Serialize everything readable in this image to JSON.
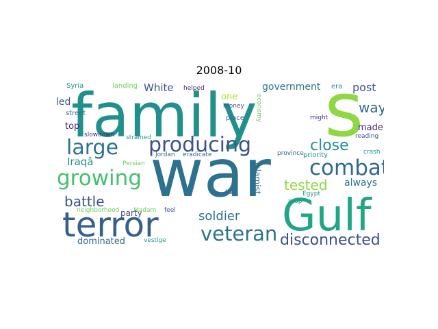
{
  "title": "2008-10",
  "words": [
    {
      "key": "family",
      "text": "family",
      "color": "#21908d"
    },
    {
      "key": "s",
      "text": "s",
      "color": "#8fd744"
    },
    {
      "key": "war",
      "text": "war",
      "color": "#2c728e"
    },
    {
      "key": "terror",
      "text": "terror",
      "color": "#355f8d"
    },
    {
      "key": "gulf",
      "text": "Gulf",
      "color": "#21a685"
    },
    {
      "key": "producing",
      "text": "producing",
      "color": "#3b528b"
    },
    {
      "key": "large",
      "text": "large",
      "color": "#2c728e"
    },
    {
      "key": "growing",
      "text": "growing",
      "color": "#44bf70"
    },
    {
      "key": "combat",
      "text": "combat",
      "color": "#31688e"
    },
    {
      "key": "veteran",
      "text": "veteran",
      "color": "#2c728e"
    },
    {
      "key": "close",
      "text": "close",
      "color": "#21908d"
    },
    {
      "key": "disconnected",
      "text": "disconnected",
      "color": "#3b528b"
    },
    {
      "key": "tested",
      "text": "tested",
      "color": "#8fd744"
    },
    {
      "key": "battle",
      "text": "battle",
      "color": "#3b528b"
    },
    {
      "key": "soldier",
      "text": "soldier",
      "color": "#2c728e"
    },
    {
      "key": "way",
      "text": "way",
      "color": "#31688e"
    },
    {
      "key": "government",
      "text": "government",
      "color": "#2c728e"
    },
    {
      "key": "post",
      "text": "post",
      "color": "#3b528b"
    },
    {
      "key": "white",
      "text": "White",
      "color": "#3b528b"
    },
    {
      "key": "iraqa",
      "text": "Iraqâ",
      "color": "#21908d"
    },
    {
      "key": "always",
      "text": "always",
      "color": "#2c728e"
    },
    {
      "key": "led",
      "text": "led",
      "color": "#3b528b"
    },
    {
      "key": "top",
      "text": "top",
      "color": "#482878"
    },
    {
      "key": "made",
      "text": "made",
      "color": "#482878"
    },
    {
      "key": "one",
      "text": "one",
      "color": "#b5de2b"
    },
    {
      "key": "dominated",
      "text": "dominated",
      "color": "#31688e"
    },
    {
      "key": "party",
      "text": "party",
      "color": "#3b528b"
    },
    {
      "key": "islamist",
      "text": "Islamist",
      "color": "#31688e"
    },
    {
      "key": "syria",
      "text": "Syria",
      "color": "#21908d"
    },
    {
      "key": "landing",
      "text": "landing",
      "color": "#6ece58"
    },
    {
      "key": "helped",
      "text": "helped",
      "color": "#482878"
    },
    {
      "key": "era",
      "text": "era",
      "color": "#21908d"
    },
    {
      "key": "money",
      "text": "money",
      "color": "#3b528b"
    },
    {
      "key": "economy",
      "text": "economy",
      "color": "#6ece58"
    },
    {
      "key": "might",
      "text": "might",
      "color": "#482878"
    },
    {
      "key": "street",
      "text": "street",
      "color": "#31688e"
    },
    {
      "key": "place",
      "text": "place",
      "color": "#31688e"
    },
    {
      "key": "slowdown",
      "text": "slowdown",
      "color": "#482878"
    },
    {
      "key": "strained",
      "text": "strained",
      "color": "#21908d"
    },
    {
      "key": "reading",
      "text": "reading",
      "color": "#3b528b"
    },
    {
      "key": "persian",
      "text": "Persian",
      "color": "#6ece58"
    },
    {
      "key": "jordan",
      "text": "Jordan",
      "color": "#31688e"
    },
    {
      "key": "eradicate",
      "text": "eradicate",
      "color": "#31688e"
    },
    {
      "key": "province",
      "text": "province",
      "color": "#31688e"
    },
    {
      "key": "priority",
      "text": "priority",
      "color": "#21908d"
    },
    {
      "key": "crash",
      "text": "crash",
      "color": "#21908d"
    },
    {
      "key": "egypt",
      "text": "Egypt",
      "color": "#21908d"
    },
    {
      "key": "prop",
      "text": "prop",
      "color": "#21908d"
    },
    {
      "key": "ha",
      "text": "ha",
      "color": "#3b528b"
    },
    {
      "key": "madam",
      "text": "Madam",
      "color": "#6ece58"
    },
    {
      "key": "feel",
      "text": "feel",
      "color": "#3b528b"
    },
    {
      "key": "neighborhood",
      "text": "neighborhood",
      "color": "#6ece58"
    },
    {
      "key": "vestige",
      "text": "vestige",
      "color": "#21908d"
    }
  ]
}
